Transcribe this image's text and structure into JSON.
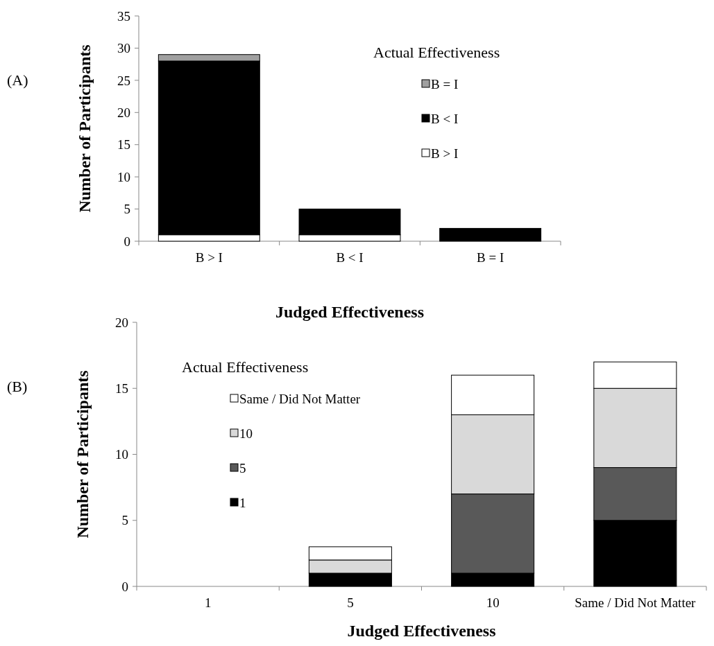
{
  "chart_data": [
    {
      "type": "bar",
      "stacked": true,
      "categories": [
        "B > I",
        "B < I",
        "B = I"
      ],
      "xlabel": "Judged Effectiveness",
      "ylabel": "Number of Participants",
      "legend_title": "Actual Effectiveness",
      "legend": "top right",
      "ylim": [
        0,
        35
      ],
      "yticks": [
        0,
        5,
        10,
        15,
        20,
        25,
        30,
        35
      ],
      "annotations": [
        "(A)"
      ],
      "series": [
        {
          "name": "B > I",
          "color": "#ffffff",
          "values": [
            1,
            1,
            0
          ]
        },
        {
          "name": "B < I",
          "color": "#000000",
          "values": [
            27,
            4,
            2
          ]
        },
        {
          "name": "B = I",
          "color": "#a0a0a0",
          "values": [
            1,
            0,
            0
          ]
        }
      ]
    },
    {
      "type": "bar",
      "stacked": true,
      "categories": [
        "1",
        "5",
        "10",
        "Same / Did Not Matter"
      ],
      "xlabel": "Judged Effectiveness",
      "ylabel": "Number of Participants",
      "legend_title": "Actual Effectiveness",
      "legend": "top left",
      "ylim": [
        0,
        20
      ],
      "yticks": [
        0,
        5,
        10,
        15,
        20
      ],
      "annotations": [
        "(B)"
      ],
      "series": [
        {
          "name": "1",
          "color": "#000000",
          "values": [
            0,
            1,
            1,
            5
          ]
        },
        {
          "name": "5",
          "color": "#595959",
          "values": [
            0,
            0,
            6,
            4
          ]
        },
        {
          "name": "10",
          "color": "#d9d9d9",
          "values": [
            0,
            1,
            6,
            6
          ]
        },
        {
          "name": "Same / Did Not Matter",
          "color": "#ffffff",
          "values": [
            0,
            1,
            3,
            2
          ]
        }
      ]
    }
  ]
}
